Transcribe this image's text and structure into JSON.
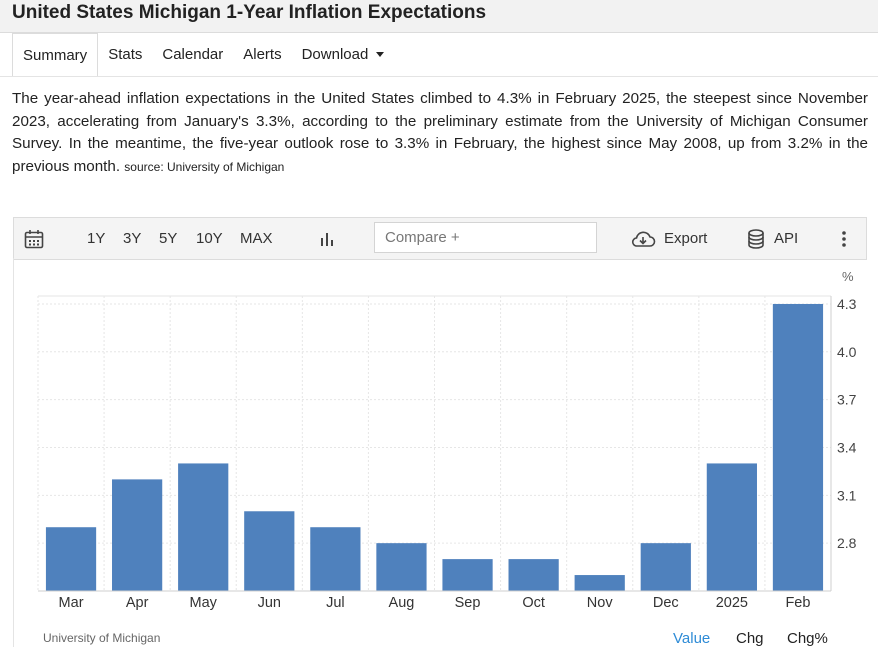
{
  "header": {
    "title": "United States Michigan 1-Year Inflation Expectations"
  },
  "tabs": [
    {
      "label": "Summary"
    },
    {
      "label": "Stats"
    },
    {
      "label": "Calendar"
    },
    {
      "label": "Alerts"
    },
    {
      "label": "Download"
    }
  ],
  "summary": {
    "text": "The year-ahead inflation expectations in the United States climbed to 4.3% in February 2025, the steepest since November 2023, accelerating from January's 3.3%, according to the preliminary estimate from the University of Michigan Consumer Survey. In the meantime, the five-year outlook rose to 3.3% in February, the highest since May 2008, up from 3.2% in the previous month.",
    "source_label": "source: University of Michigan"
  },
  "toolbar": {
    "ranges": [
      "1Y",
      "3Y",
      "5Y",
      "10Y",
      "MAX"
    ],
    "compare_placeholder": "Compare +",
    "export_label": "Export",
    "api_label": "API"
  },
  "chart_data": {
    "type": "bar",
    "categories": [
      "Mar",
      "Apr",
      "May",
      "Jun",
      "Jul",
      "Aug",
      "Sep",
      "Oct",
      "Nov",
      "Dec",
      "2025",
      "Feb"
    ],
    "values": [
      2.9,
      3.2,
      3.3,
      3.0,
      2.9,
      2.8,
      2.7,
      2.7,
      2.6,
      2.8,
      3.3,
      4.3
    ],
    "unit": "%",
    "yticks": [
      2.8,
      3.1,
      3.4,
      3.7,
      4.0,
      4.3
    ],
    "ylim": [
      2.5,
      4.35
    ],
    "grid": true,
    "color": "#4f81bd",
    "source": "University of Michigan"
  },
  "footer": {
    "tabs": [
      "Value",
      "Chg",
      "Chg%"
    ],
    "active_color": "#2e8bd6"
  }
}
